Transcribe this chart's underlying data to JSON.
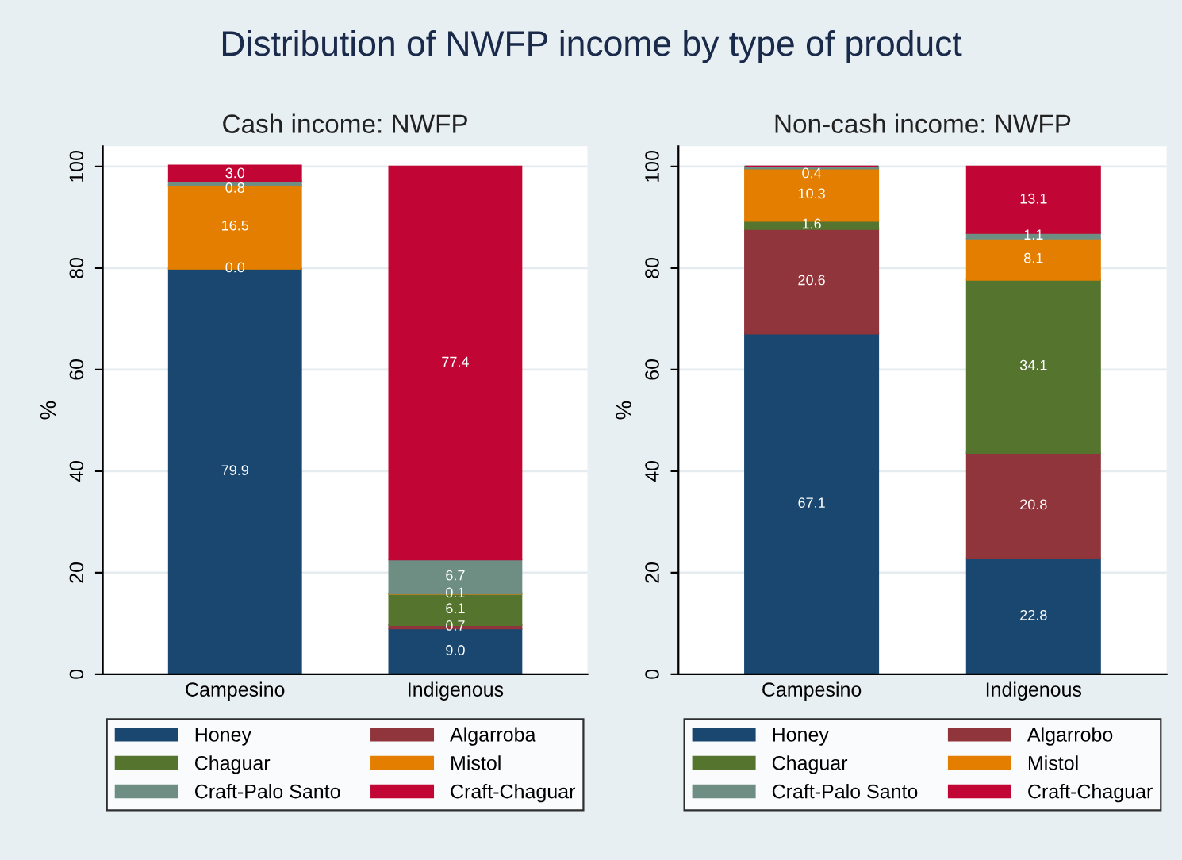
{
  "chart_data": [
    {
      "type": "bar",
      "stacked": true,
      "title": "Cash income: NWFP",
      "ylabel": "%",
      "annotations": [
        "Distribution of NWFP income by type of product"
      ],
      "categories": [
        "Campesino",
        "Indigenous"
      ],
      "ylim": [
        0,
        104
      ],
      "yticks": [
        0,
        20,
        40,
        60,
        80,
        100
      ],
      "grid": "y",
      "legend": "bottom",
      "series": [
        {
          "name": "Honey",
          "color": "#1a476f",
          "values": [
            79.9,
            9.0
          ],
          "value_labels": [
            "79.9",
            "9.0"
          ]
        },
        {
          "name": "Algarroba",
          "color": "#90353b",
          "values": [
            0.0,
            0.7
          ],
          "value_labels": [
            "0.0",
            "0.7"
          ]
        },
        {
          "name": "Chaguar",
          "color": "#55752f",
          "values": [
            0.0,
            6.1
          ],
          "value_labels": [
            null,
            "6.1"
          ]
        },
        {
          "name": "Mistol",
          "color": "#e37e00",
          "values": [
            16.5,
            0.1
          ],
          "value_labels": [
            "16.5",
            "0.1"
          ]
        },
        {
          "name": "Craft-Palo Santo",
          "color": "#6e8e84",
          "values": [
            0.8,
            6.7
          ],
          "value_labels": [
            "0.8",
            "6.7"
          ]
        },
        {
          "name": "Craft-Chaguar",
          "color": "#c10534",
          "values": [
            3.0,
            77.4
          ],
          "value_labels": [
            "3.0",
            "77.4"
          ]
        }
      ]
    },
    {
      "type": "bar",
      "stacked": true,
      "title": "Non-cash income: NWFP",
      "ylabel": "%",
      "categories": [
        "Campesino",
        "Indigenous"
      ],
      "ylim": [
        0,
        104
      ],
      "yticks": [
        0,
        20,
        40,
        60,
        80,
        100
      ],
      "grid": "y",
      "legend": "bottom",
      "series": [
        {
          "name": "Honey",
          "color": "#1a476f",
          "values": [
            67.1,
            22.8
          ],
          "value_labels": [
            "67.1",
            "22.8"
          ]
        },
        {
          "name": "Algarrobo",
          "color": "#90353b",
          "values": [
            20.6,
            20.8
          ],
          "value_labels": [
            "20.6",
            "20.8"
          ]
        },
        {
          "name": "Chaguar",
          "color": "#55752f",
          "values": [
            1.6,
            34.1
          ],
          "value_labels": [
            "1.6",
            "34.1"
          ]
        },
        {
          "name": "Mistol",
          "color": "#e37e00",
          "values": [
            10.3,
            8.1
          ],
          "value_labels": [
            "10.3",
            "8.1"
          ]
        },
        {
          "name": "Craft-Palo Santo",
          "color": "#6e8e84",
          "values": [
            0.4,
            1.1
          ],
          "value_labels": [
            "0.4",
            "1.1"
          ]
        },
        {
          "name": "Craft-Chaguar",
          "color": "#c10534",
          "values": [
            0.0,
            13.1
          ],
          "value_labels": [
            null,
            "13.1"
          ]
        }
      ]
    }
  ]
}
